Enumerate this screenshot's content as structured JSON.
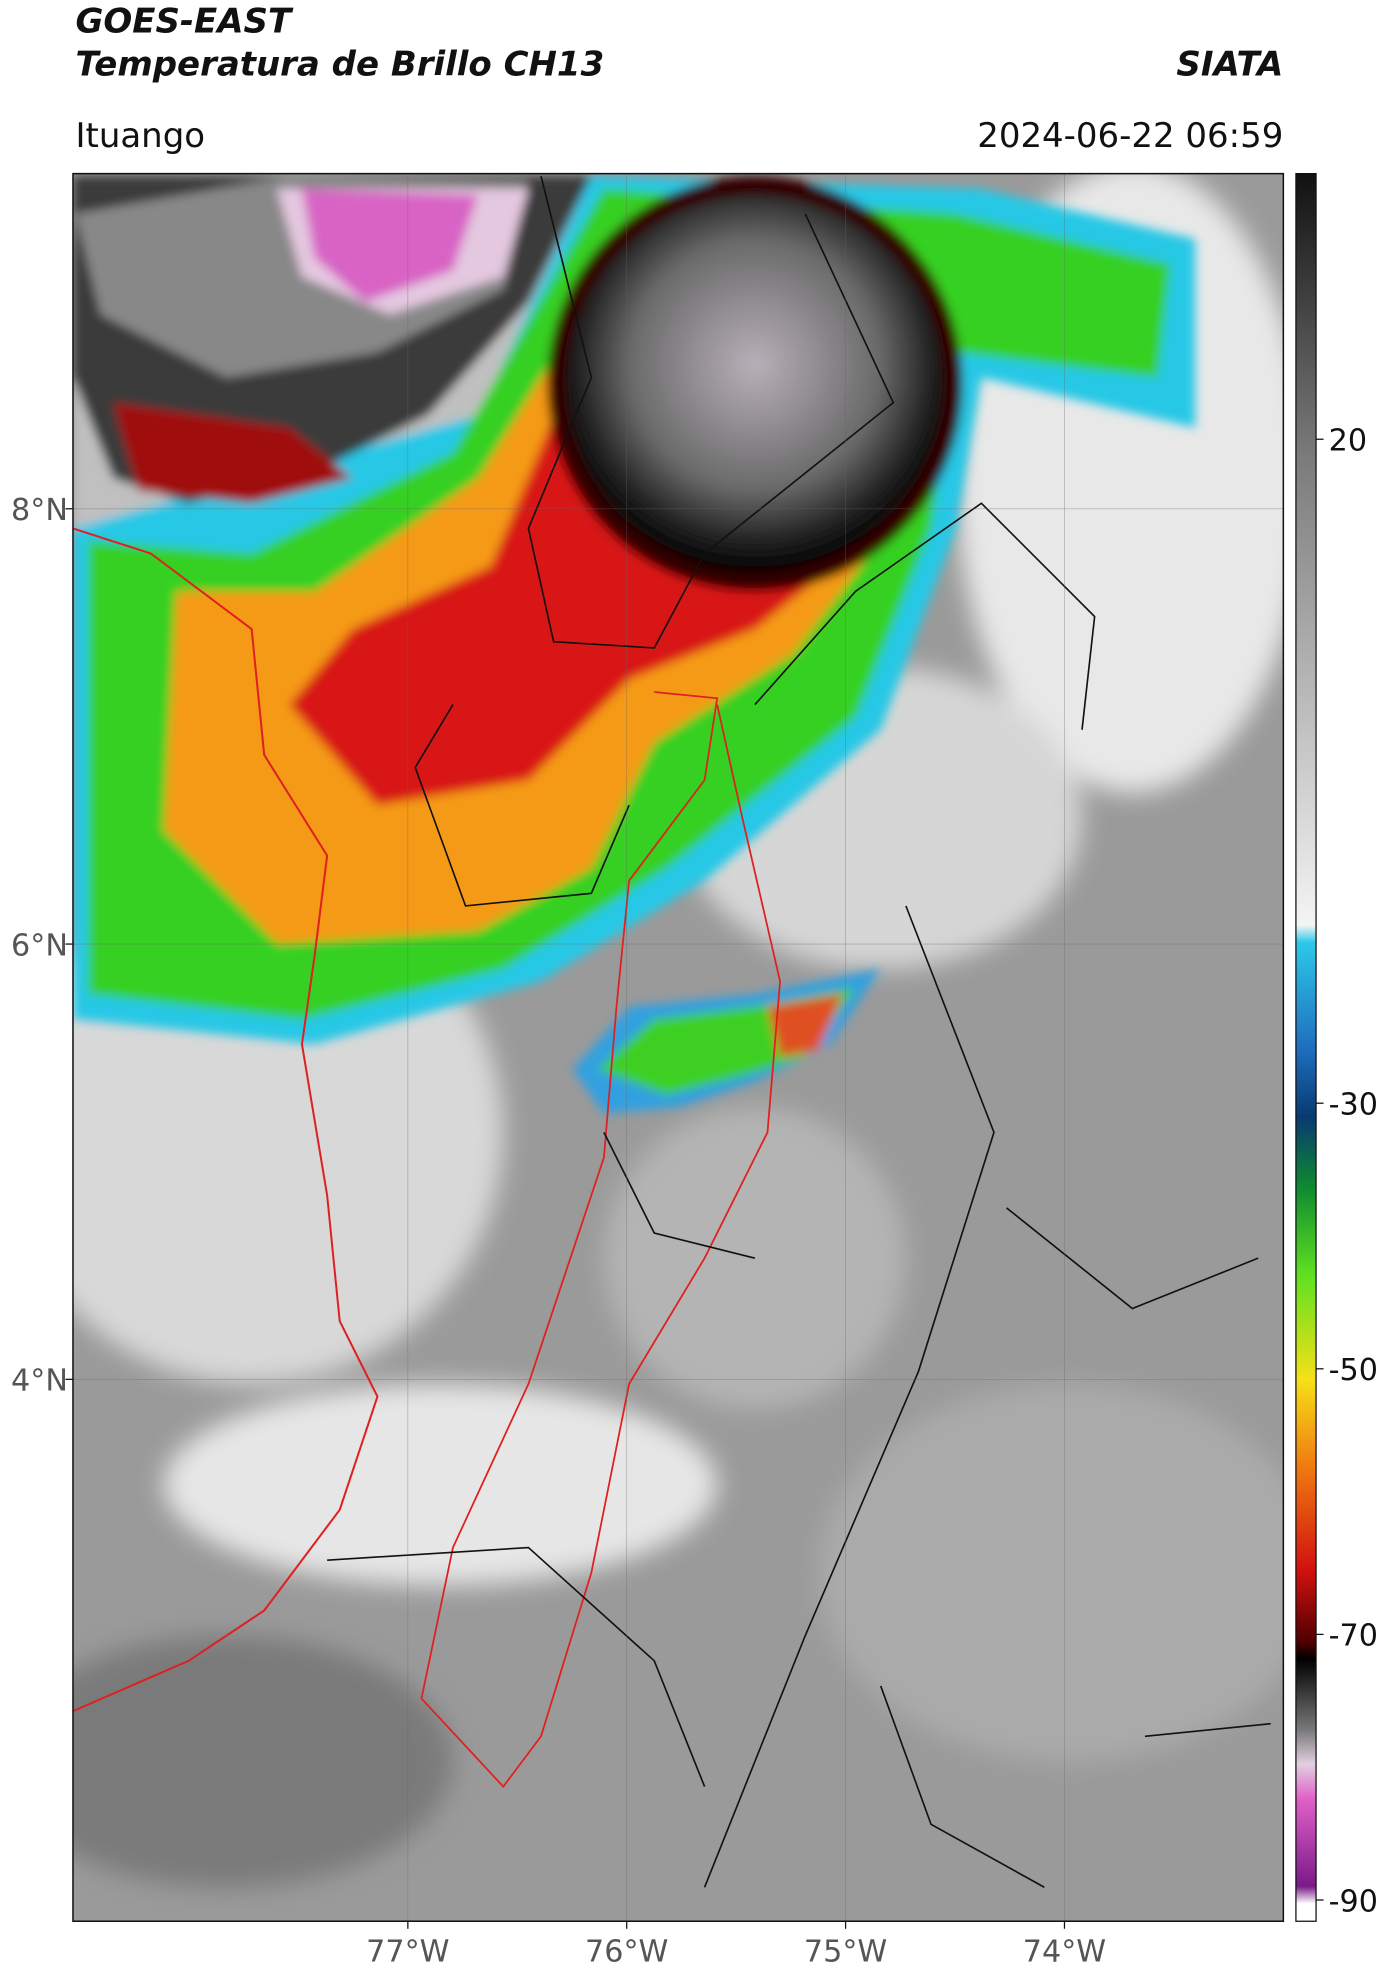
{
  "header": {
    "title": "GOES-EAST",
    "subtitle": "Temperatura de Brillo CH13",
    "source": "SIATA",
    "location": "Ituango",
    "datetime": "2024-06-22 06:59"
  },
  "map": {
    "xlim": [
      -78.53,
      -73.0
    ],
    "ylim": [
      1.51,
      9.54
    ],
    "xticks": [
      {
        "value": -77,
        "label": "77°W"
      },
      {
        "value": -76,
        "label": "76°W"
      },
      {
        "value": -75,
        "label": "75°W"
      },
      {
        "value": -74,
        "label": "74°W"
      }
    ],
    "yticks": [
      {
        "value": 8,
        "label": "8°N"
      },
      {
        "value": 6,
        "label": "6°N"
      },
      {
        "value": 4,
        "label": "4°N"
      }
    ],
    "grid": true
  },
  "colorbar": {
    "lim": [
      -91.6,
      40
    ],
    "ticks": [
      20,
      -30,
      -50,
      -70,
      -90
    ]
  }
}
